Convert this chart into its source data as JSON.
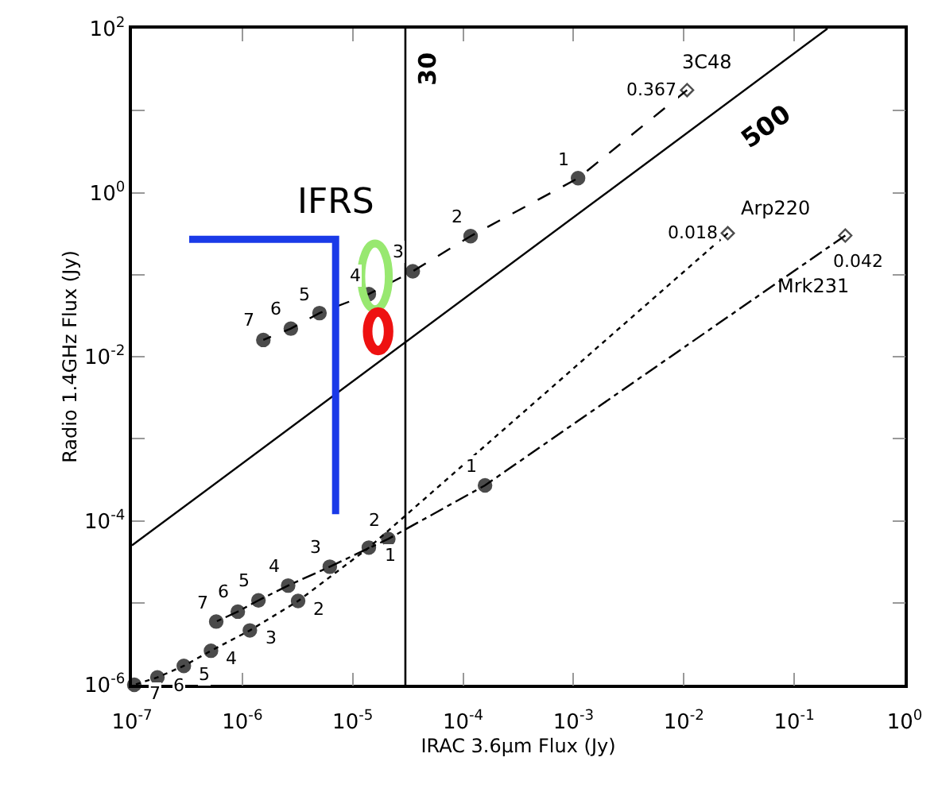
{
  "chart_data": {
    "type": "line",
    "xlabel": "IRAC 3.6μm Flux (Jy)",
    "ylabel": "Radio 1.4GHz Flux (Jy)",
    "log": "xy",
    "legend": false,
    "xlim": [
      1e-07,
      1
    ],
    "ylim": [
      1e-06,
      100
    ],
    "xticks": [
      {
        "value": 1e-07,
        "label": "10$^{-7}$"
      },
      {
        "value": 1e-06,
        "label": "10$^{-6}$"
      },
      {
        "value": 1e-05,
        "label": "10$^{-5}$"
      },
      {
        "value": 0.0001,
        "label": "10$^{-4}$"
      },
      {
        "value": 0.001,
        "label": "10$^{-3}$"
      },
      {
        "value": 0.01,
        "label": "10$^{-2}$"
      },
      {
        "value": 0.1,
        "label": "10$^{-1}$"
      },
      {
        "value": 1,
        "label": "10$^{0}$"
      }
    ],
    "yticks": [
      {
        "value": 1e-06,
        "label": "10$^{-6}$"
      },
      {
        "value": 1e-05,
        "label": null
      },
      {
        "value": 0.0001,
        "label": "10$^{-4}$"
      },
      {
        "value": 0.001,
        "label": null
      },
      {
        "value": 0.01,
        "label": "10$^{-2}$"
      },
      {
        "value": 0.1,
        "label": null
      },
      {
        "value": 1,
        "label": "10$^{0}$"
      },
      {
        "value": 10,
        "label": null
      },
      {
        "value": 100,
        "label": "10$^{2}$"
      }
    ],
    "series": [
      {
        "name": "3C48",
        "color": "#000000",
        "line_style": "dashed",
        "marker": [
          "diamond",
          "circle",
          "circle",
          "circle",
          "circle",
          "circle",
          "circle",
          "circle"
        ],
        "x": [
          0.0107,
          0.0011,
          0.000117,
          3.5e-05,
          1.4e-05,
          5e-06,
          2.75e-06,
          1.55e-06
        ],
        "values": [
          17.8,
          1.5,
          0.295,
          0.11,
          0.058,
          0.034,
          0.022,
          0.016
        ]
      },
      {
        "name": "Arp220",
        "color": "#000000",
        "line_style": "dotted",
        "marker": [
          "diamond",
          "circle",
          "circle",
          "circle",
          "circle",
          "circle",
          "circle",
          "circle"
        ],
        "x": [
          0.025,
          1.4e-05,
          3.2e-06,
          1.17e-06,
          5.2e-07,
          2.95e-07,
          1.7e-07,
          1.05e-07
        ],
        "values": [
          0.32,
          4.7e-05,
          1.05e-05,
          4.6e-06,
          2.6e-06,
          1.7e-06,
          1.23e-06,
          1e-06
        ]
      },
      {
        "name": "Mrk231",
        "color": "#000000",
        "line_style": "dashdot",
        "marker": [
          "diamond",
          "circle",
          "circle",
          "circle",
          "circle",
          "circle",
          "circle",
          "circle"
        ],
        "x": [
          0.29,
          0.000158,
          2.1e-05,
          6.2e-06,
          2.6e-06,
          1.4e-06,
          9.1e-07,
          5.8e-07
        ],
        "values": [
          0.3,
          0.00027,
          6e-05,
          2.75e-05,
          1.62e-05,
          1.07e-05,
          7.8e-06,
          5.9e-06
        ]
      },
      {
        "color": "#000000",
        "line_style": "solid",
        "marker": "none",
        "x": [
          1e-07,
          0.2
        ],
        "values": [
          5e-05,
          100
        ]
      },
      {
        "color": "#1a3ae8",
        "line_style": "solid",
        "marker": "none",
        "x": [
          3.3e-07,
          7e-06,
          7e-06
        ],
        "values": [
          0.27,
          0.27,
          0.00012
        ]
      }
    ],
    "ref_lines": [
      {
        "axis": "x",
        "value": 3e-05,
        "label": "30",
        "color": "#000000",
        "line_style": "solid"
      }
    ],
    "annotations": [
      "IFRS",
      "500",
      {
        "text": "0.367",
        "x": 0.0107,
        "y": 17.8
      },
      {
        "text": "1",
        "x": 0.0011,
        "y": 1.5
      },
      {
        "text": "2",
        "x": 0.000117,
        "y": 0.295
      },
      {
        "text": "3",
        "x": 3.5e-05,
        "y": 0.11
      },
      {
        "text": "4",
        "x": 1.4e-05,
        "y": 0.058
      },
      {
        "text": "5",
        "x": 5e-06,
        "y": 0.034
      },
      {
        "text": "6",
        "x": 2.75e-06,
        "y": 0.022
      },
      {
        "text": "7",
        "x": 1.55e-06,
        "y": 0.016
      },
      {
        "text": "0.018",
        "x": 0.025,
        "y": 0.32
      },
      {
        "text": "1",
        "x": 1.4e-05,
        "y": 4.7e-05
      },
      {
        "text": "2",
        "x": 3.2e-06,
        "y": 1.05e-05
      },
      {
        "text": "3",
        "x": 1.17e-06,
        "y": 4.6e-06
      },
      {
        "text": "4",
        "x": 5.2e-07,
        "y": 2.6e-06
      },
      {
        "text": "5",
        "x": 2.95e-07,
        "y": 1.7e-06
      },
      {
        "text": "6",
        "x": 1.7e-07,
        "y": 1.23e-06
      },
      {
        "text": "7",
        "x": 1.05e-07,
        "y": 1e-06
      },
      {
        "text": "0.042",
        "x": 0.29,
        "y": 0.3
      },
      {
        "text": "1",
        "x": 0.000158,
        "y": 0.00027
      },
      {
        "text": "2",
        "x": 2.1e-05,
        "y": 6e-05
      },
      {
        "text": "3",
        "x": 6.2e-06,
        "y": 2.75e-05
      },
      {
        "text": "4",
        "x": 2.6e-06,
        "y": 1.62e-05
      },
      {
        "text": "5",
        "x": 1.4e-06,
        "y": 1.07e-05
      },
      {
        "text": "6",
        "x": 9.1e-07,
        "y": 7.8e-06
      },
      {
        "text": "7",
        "x": 5.8e-07,
        "y": 5.9e-06
      }
    ]
  }
}
